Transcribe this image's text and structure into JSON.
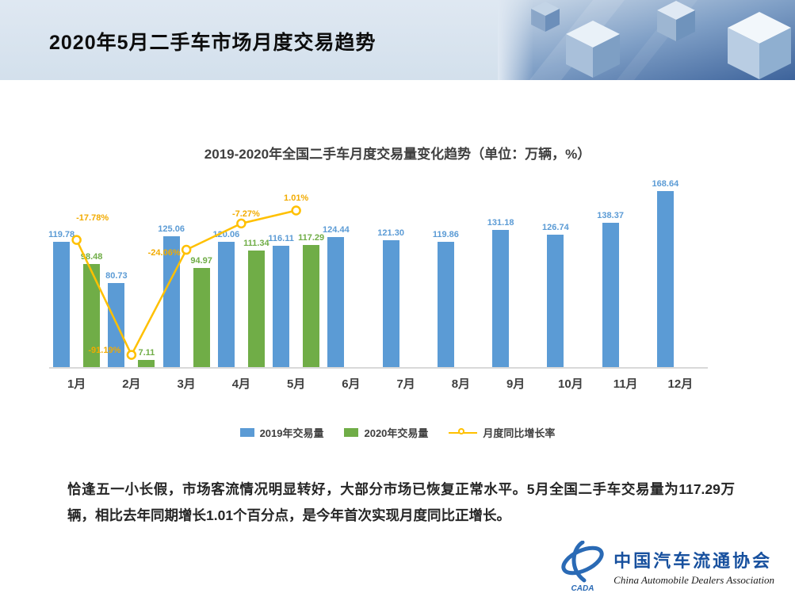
{
  "header": {
    "title": "2020年5月二手车市场月度交易趋势"
  },
  "chart_data": {
    "type": "bar+line",
    "title": "2019-2020年全国二手车月度交易量变化趋势（单位：万辆，%）",
    "categories": [
      "1月",
      "2月",
      "3月",
      "4月",
      "5月",
      "6月",
      "7月",
      "8月",
      "9月",
      "10月",
      "11月",
      "12月"
    ],
    "series": [
      {
        "name": "2019年交易量",
        "type": "bar",
        "color": "#5B9BD5",
        "values": [
          119.78,
          80.73,
          125.06,
          120.06,
          116.11,
          124.44,
          121.3,
          119.86,
          131.18,
          126.74,
          138.37,
          168.64
        ]
      },
      {
        "name": "2020年交易量",
        "type": "bar",
        "color": "#70AD47",
        "values": [
          98.48,
          7.11,
          94.97,
          111.34,
          117.29,
          null,
          null,
          null,
          null,
          null,
          null,
          null
        ]
      },
      {
        "name": "月度同比增长率",
        "type": "line",
        "color": "#FFC000",
        "values": [
          -17.78,
          -91.19,
          -24.06,
          -7.27,
          1.01,
          null,
          null,
          null,
          null,
          null,
          null,
          null
        ],
        "labels": [
          "-17.78%",
          "-91.19%",
          "-24.06%",
          "-7.27%",
          "1.01%"
        ]
      }
    ],
    "y_axis": {
      "min": 0,
      "max": 180
    },
    "y2_axis": {
      "min": -100,
      "max": 20
    },
    "grid": false,
    "legend_position": "bottom"
  },
  "body": {
    "paragraph": "恰逢五一小长假，市场客流情况明显转好，大部分市场已恢复正常水平。5月全国二手车交易量为117.29万辆，相比去年同期增长1.01个百分点，是今年首次实现月度同比正增长。"
  },
  "footer": {
    "org_name_cn": "中国汽车流通协会",
    "org_name_en": "China Automobile Dealers Association",
    "logo_text": "CADA"
  }
}
